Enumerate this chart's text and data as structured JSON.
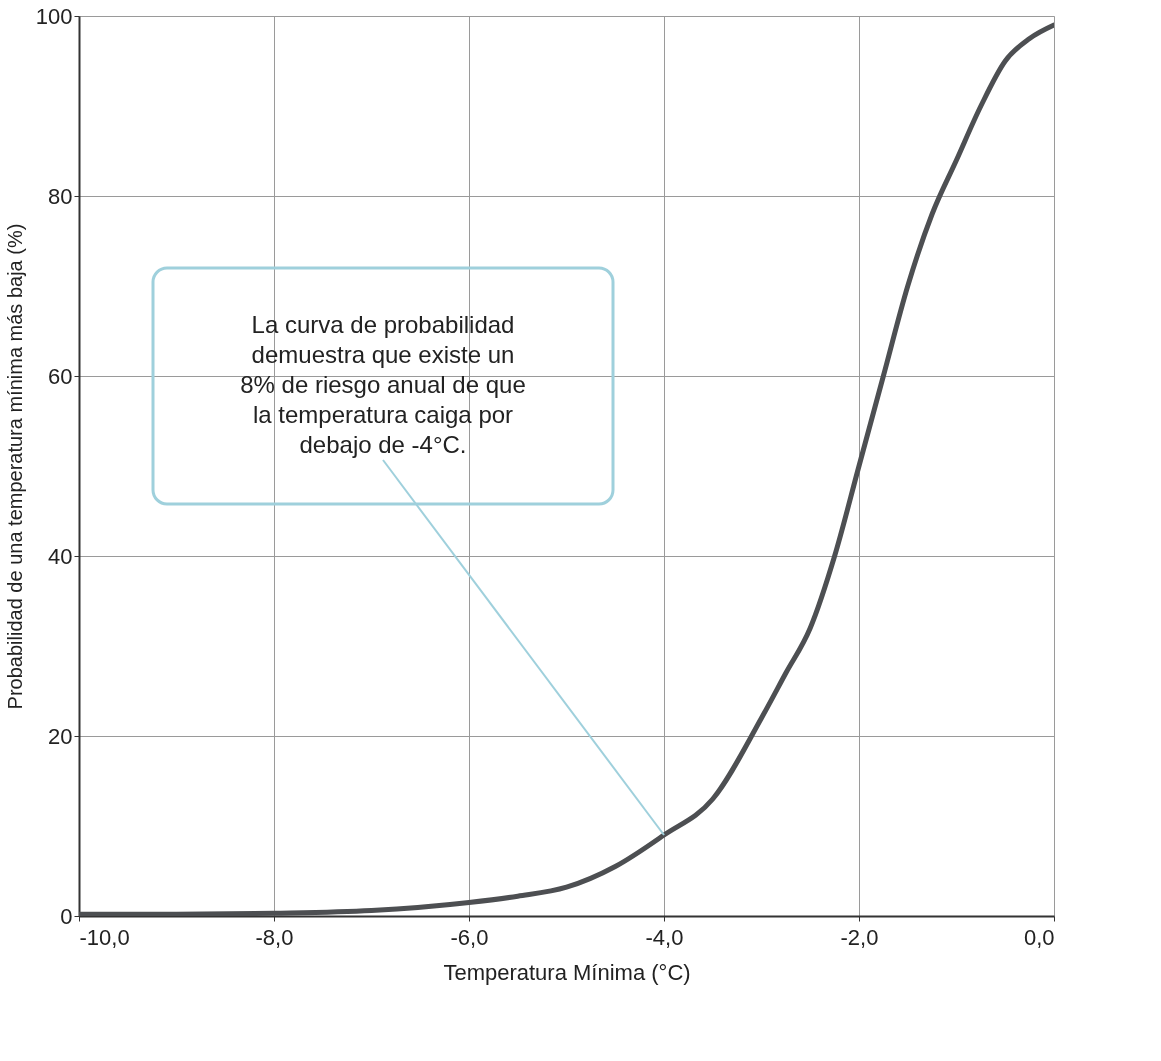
{
  "chart_data": {
    "type": "line",
    "xlabel": "Temperatura Mínima (°C)",
    "ylabel": "Probabilidad de una temperatura mínima más baja (%)",
    "x": [
      -10,
      -9,
      -8,
      -7,
      -6,
      -5.5,
      -5,
      -4.5,
      -4,
      -3.5,
      -3,
      -2.75,
      -2.5,
      -2.25,
      -2,
      -1.75,
      -1.5,
      -1.25,
      -1,
      -0.75,
      -0.5,
      -0.25,
      0
    ],
    "series": [
      {
        "color": "#4d4f52",
        "values": [
          0.2,
          0.2,
          0.3,
          0.6,
          1.5,
          2.2,
          3.2,
          5.5,
          9,
          13,
          22,
          27,
          32,
          40,
          50,
          60,
          70,
          78,
          84,
          90,
          95,
          97.5,
          99
        ]
      }
    ],
    "xlim": [
      -10,
      0
    ],
    "xticks": [
      {
        "value": -10,
        "label": "-10,0"
      },
      {
        "value": -8,
        "label": "-8,0"
      },
      {
        "value": -6,
        "label": "-6,0"
      },
      {
        "value": -4,
        "label": "-4,0"
      },
      {
        "value": -2,
        "label": "-2,0"
      },
      {
        "value": 0,
        "label": "0,0"
      }
    ],
    "ylim": [
      0,
      100
    ],
    "yticks": [
      0,
      20,
      40,
      60,
      80,
      100
    ],
    "grid": true,
    "marker": "none",
    "line_style": "solid",
    "annotations": [
      {
        "text": "La curva de probabilidad demuestra que existe un 8% de riesgo anual de que la temperatura caiga por debajo de -4°C.",
        "x": -4,
        "y": 9
      }
    ]
  }
}
